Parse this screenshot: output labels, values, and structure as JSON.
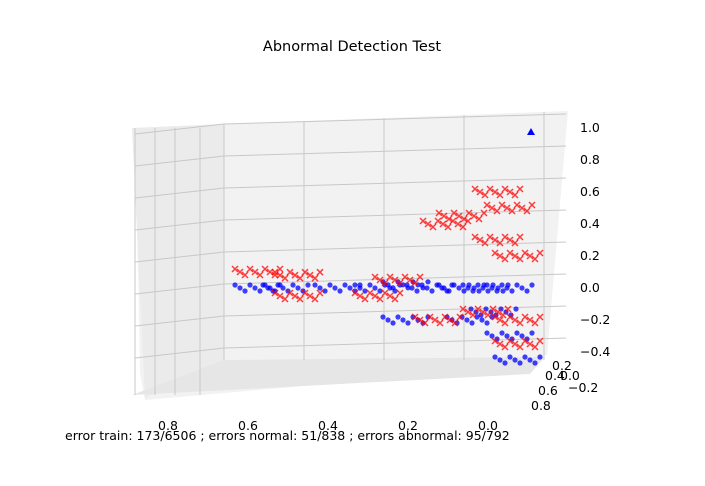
{
  "chart_data": {
    "type": "scatter",
    "projection": "3d",
    "title": "Abnormal Detection Test",
    "caption": "error train: 173/6506 ; errors normal: 51/838 ; errors abnormal: 95/792",
    "axes": {
      "x": {
        "ticks": [
          "0.8",
          "0.6",
          "0.4",
          "0.2",
          "0.0"
        ],
        "ticks_numeric": [
          0.8,
          0.6,
          0.4,
          0.2,
          0.0
        ]
      },
      "y": {
        "ticks": [
          "0.8",
          "0.6",
          "0.4",
          "0.2",
          "0.0",
          "−0.2"
        ],
        "ticks_numeric": [
          0.8,
          0.6,
          0.4,
          0.2,
          0.0,
          -0.2
        ]
      },
      "z": {
        "ticks": [
          "1.0",
          "0.8",
          "0.6",
          "0.4",
          "0.2",
          "0.0",
          "−0.2",
          "−0.4"
        ],
        "ticks_numeric": [
          1.0,
          0.8,
          0.6,
          0.4,
          0.2,
          0.0,
          -0.2,
          -0.4
        ]
      }
    },
    "grid": true,
    "series": [
      {
        "color": "#0000ff",
        "marker": "circle",
        "description": "normal samples",
        "points": [
          [
            0.65,
            0.0
          ],
          [
            0.58,
            0.0
          ],
          [
            0.45,
            0.0
          ],
          [
            0.35,
            0.0
          ],
          [
            0.28,
            0.02
          ],
          [
            0.22,
            0.0
          ],
          [
            0.14,
            0.0
          ],
          [
            0.08,
            0.0
          ],
          [
            0.02,
            0.0
          ],
          [
            0.28,
            -0.2
          ],
          [
            0.12,
            -0.2
          ],
          [
            0.06,
            -0.15
          ],
          [
            0.02,
            -0.3
          ],
          [
            0.0,
            -0.45
          ]
        ]
      },
      {
        "color": "#ff0000",
        "marker": "x",
        "description": "abnormal samples",
        "points": [
          [
            0.65,
            0.1
          ],
          [
            0.55,
            0.08
          ],
          [
            0.3,
            0.05
          ],
          [
            0.18,
            0.4
          ],
          [
            0.14,
            0.45
          ],
          [
            0.05,
            0.6
          ],
          [
            0.02,
            0.5
          ],
          [
            0.05,
            0.3
          ],
          [
            0.0,
            0.2
          ],
          [
            0.0,
            -0.2
          ],
          [
            0.0,
            -0.35
          ],
          [
            0.08,
            -0.15
          ],
          [
            0.2,
            -0.2
          ],
          [
            0.35,
            -0.05
          ],
          [
            0.55,
            -0.05
          ]
        ]
      }
    ],
    "highlights": [
      {
        "color": "#0000ff",
        "marker": "triangle",
        "label": "blue triangle",
        "x": 0.0,
        "z": 1.0
      }
    ]
  }
}
